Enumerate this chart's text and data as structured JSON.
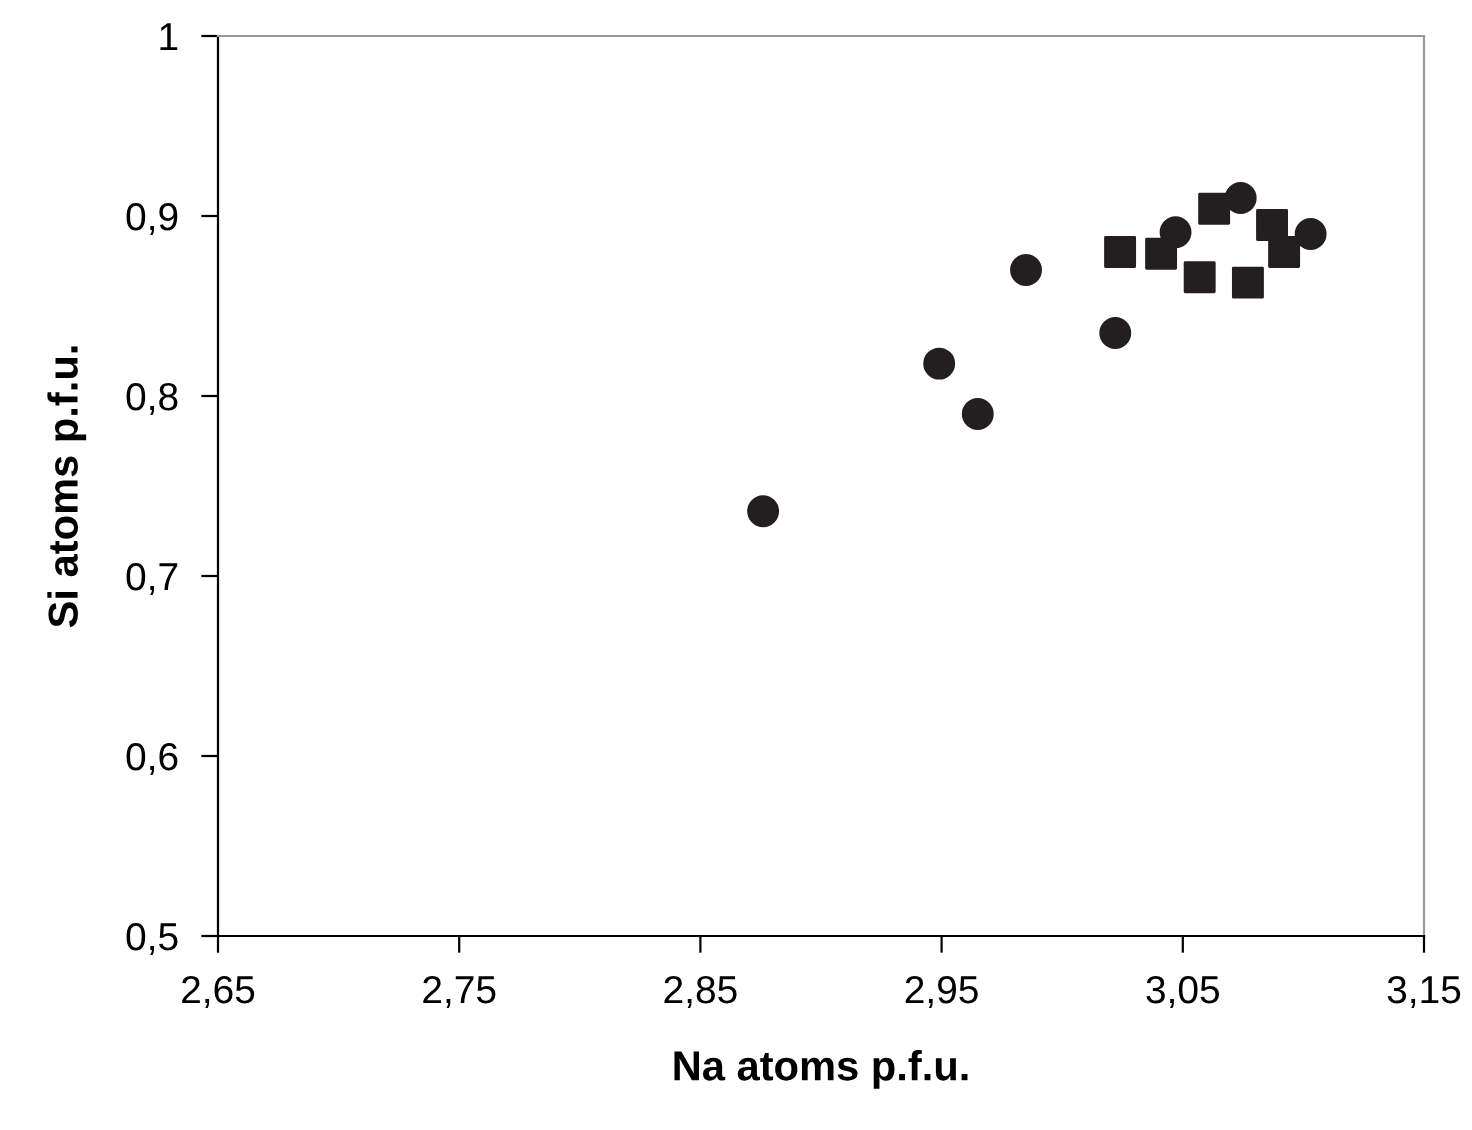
{
  "chart_data": {
    "type": "scatter",
    "xlabel": "Na atoms p.f.u.",
    "ylabel": "Si atoms p.f.u.",
    "series": [
      {
        "color": "#231f20",
        "marker": "circle",
        "x": [
          2.876,
          2.949,
          2.965,
          2.985,
          3.022,
          3.047,
          3.074,
          3.103
        ],
        "values": [
          0.736,
          0.818,
          0.79,
          0.87,
          0.835,
          0.891,
          0.91,
          0.89
        ]
      },
      {
        "color": "#231f20",
        "marker": "square",
        "x": [
          3.024,
          3.041,
          3.063,
          3.057,
          3.077,
          3.087,
          3.092
        ],
        "values": [
          0.88,
          0.879,
          0.904,
          0.866,
          0.863,
          0.895,
          0.88
        ]
      }
    ],
    "xlim": [
      2.65,
      3.15
    ],
    "ylim": [
      0.5,
      1
    ],
    "xticks": [
      {
        "value": 2.65,
        "label": "2,65"
      },
      {
        "value": 2.75,
        "label": "2,75"
      },
      {
        "value": 2.85,
        "label": "2,85"
      },
      {
        "value": 2.95,
        "label": "2,95"
      },
      {
        "value": 3.05,
        "label": "3,05"
      },
      {
        "value": 3.15,
        "label": "3,15"
      }
    ],
    "yticks": [
      {
        "value": 0.5,
        "label": "0,5"
      },
      {
        "value": 0.6,
        "label": "0,6"
      },
      {
        "value": 0.7,
        "label": "0,7"
      },
      {
        "value": 0.8,
        "label": "0,8"
      },
      {
        "value": 0.9,
        "label": "0,9"
      },
      1
    ],
    "grid": false
  }
}
